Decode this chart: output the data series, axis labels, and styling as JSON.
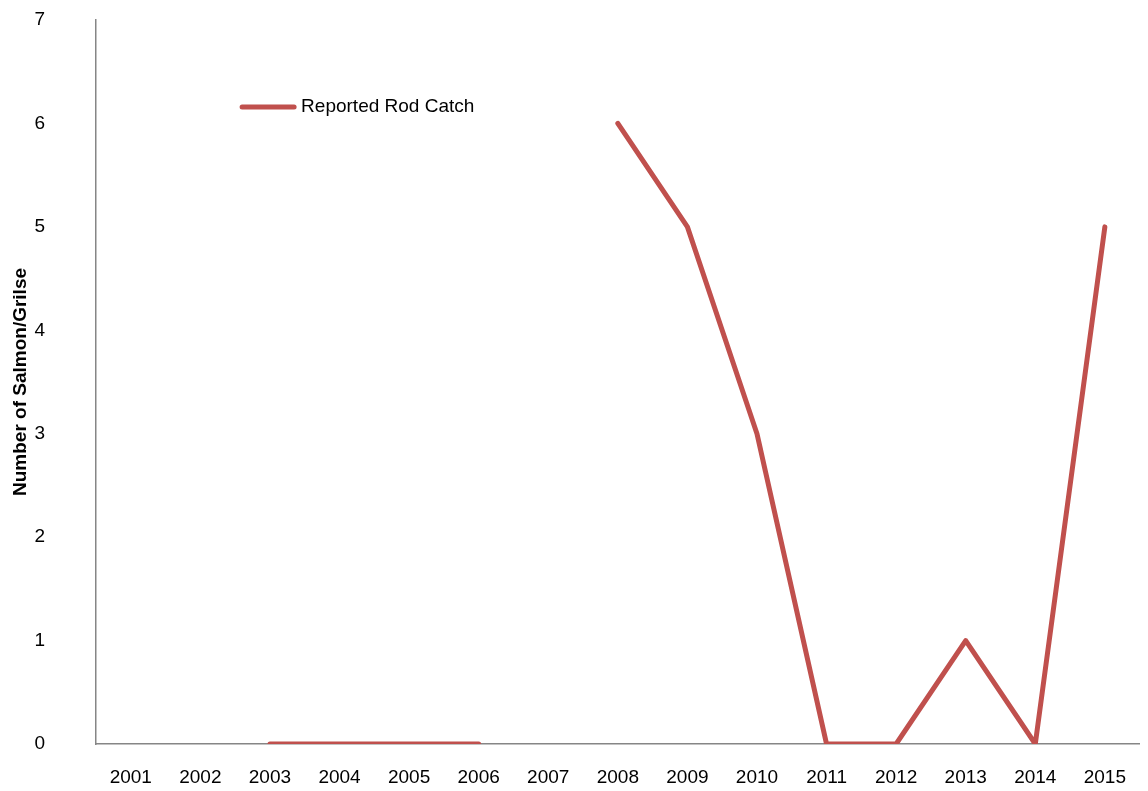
{
  "chart_data": {
    "type": "line",
    "ylabel": "Number of Salmon/Grilse",
    "categories": [
      "2001",
      "2002",
      "2003",
      "2004",
      "2005",
      "2006",
      "2007",
      "2008",
      "2009",
      "2010",
      "2011",
      "2012",
      "2013",
      "2014",
      "2015"
    ],
    "series": [
      {
        "name": "Reported Rod Catch",
        "color": "#c0504d",
        "values": [
          null,
          null,
          0,
          0,
          0,
          0,
          null,
          6,
          5,
          3,
          0,
          0,
          1,
          0,
          5
        ]
      }
    ],
    "ylim": [
      0,
      7
    ],
    "yticks": [
      0,
      1,
      2,
      3,
      4,
      5,
      6,
      7
    ],
    "legend": "top left"
  }
}
